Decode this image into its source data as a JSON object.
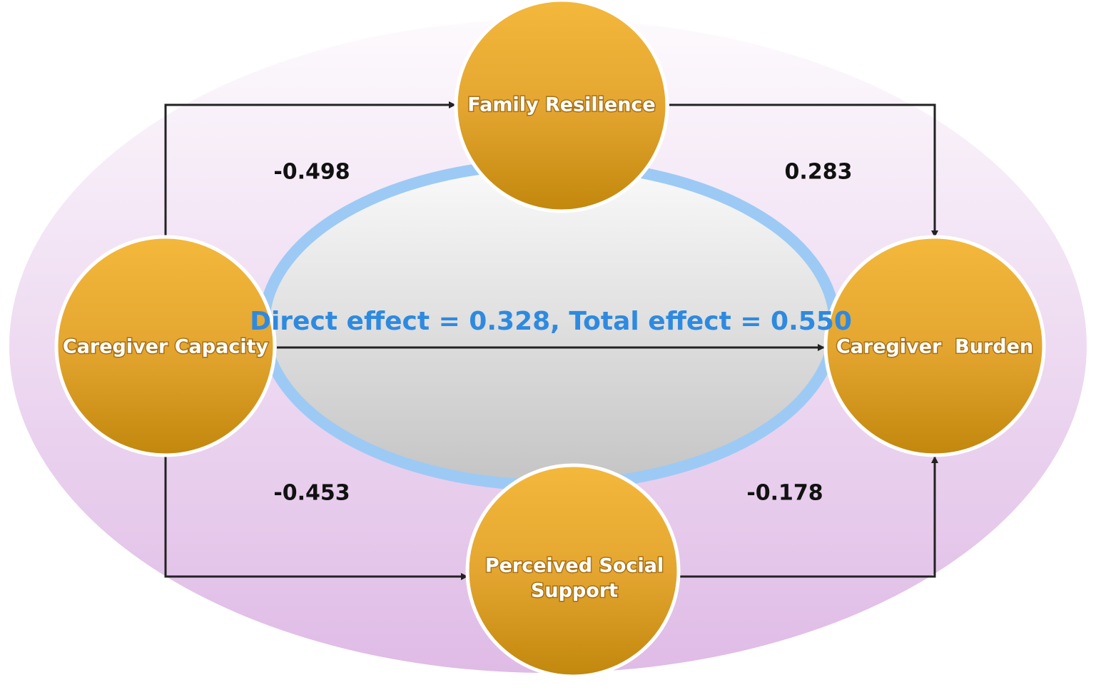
{
  "nodes": [
    {
      "label": "Family Resilience"
    },
    {
      "label": "Caregiver Capacity"
    },
    {
      "label": "Caregiver  Burden"
    },
    {
      "label": [
        "Perceived Social",
        "Support"
      ]
    }
  ],
  "edges": [
    {
      "label": "-0.498"
    },
    {
      "label": "0.283"
    },
    {
      "label": "-0.453"
    },
    {
      "label": "-0.178"
    }
  ],
  "direct_effect": "Direct effect = 0.328, Total effect = 0.550"
}
